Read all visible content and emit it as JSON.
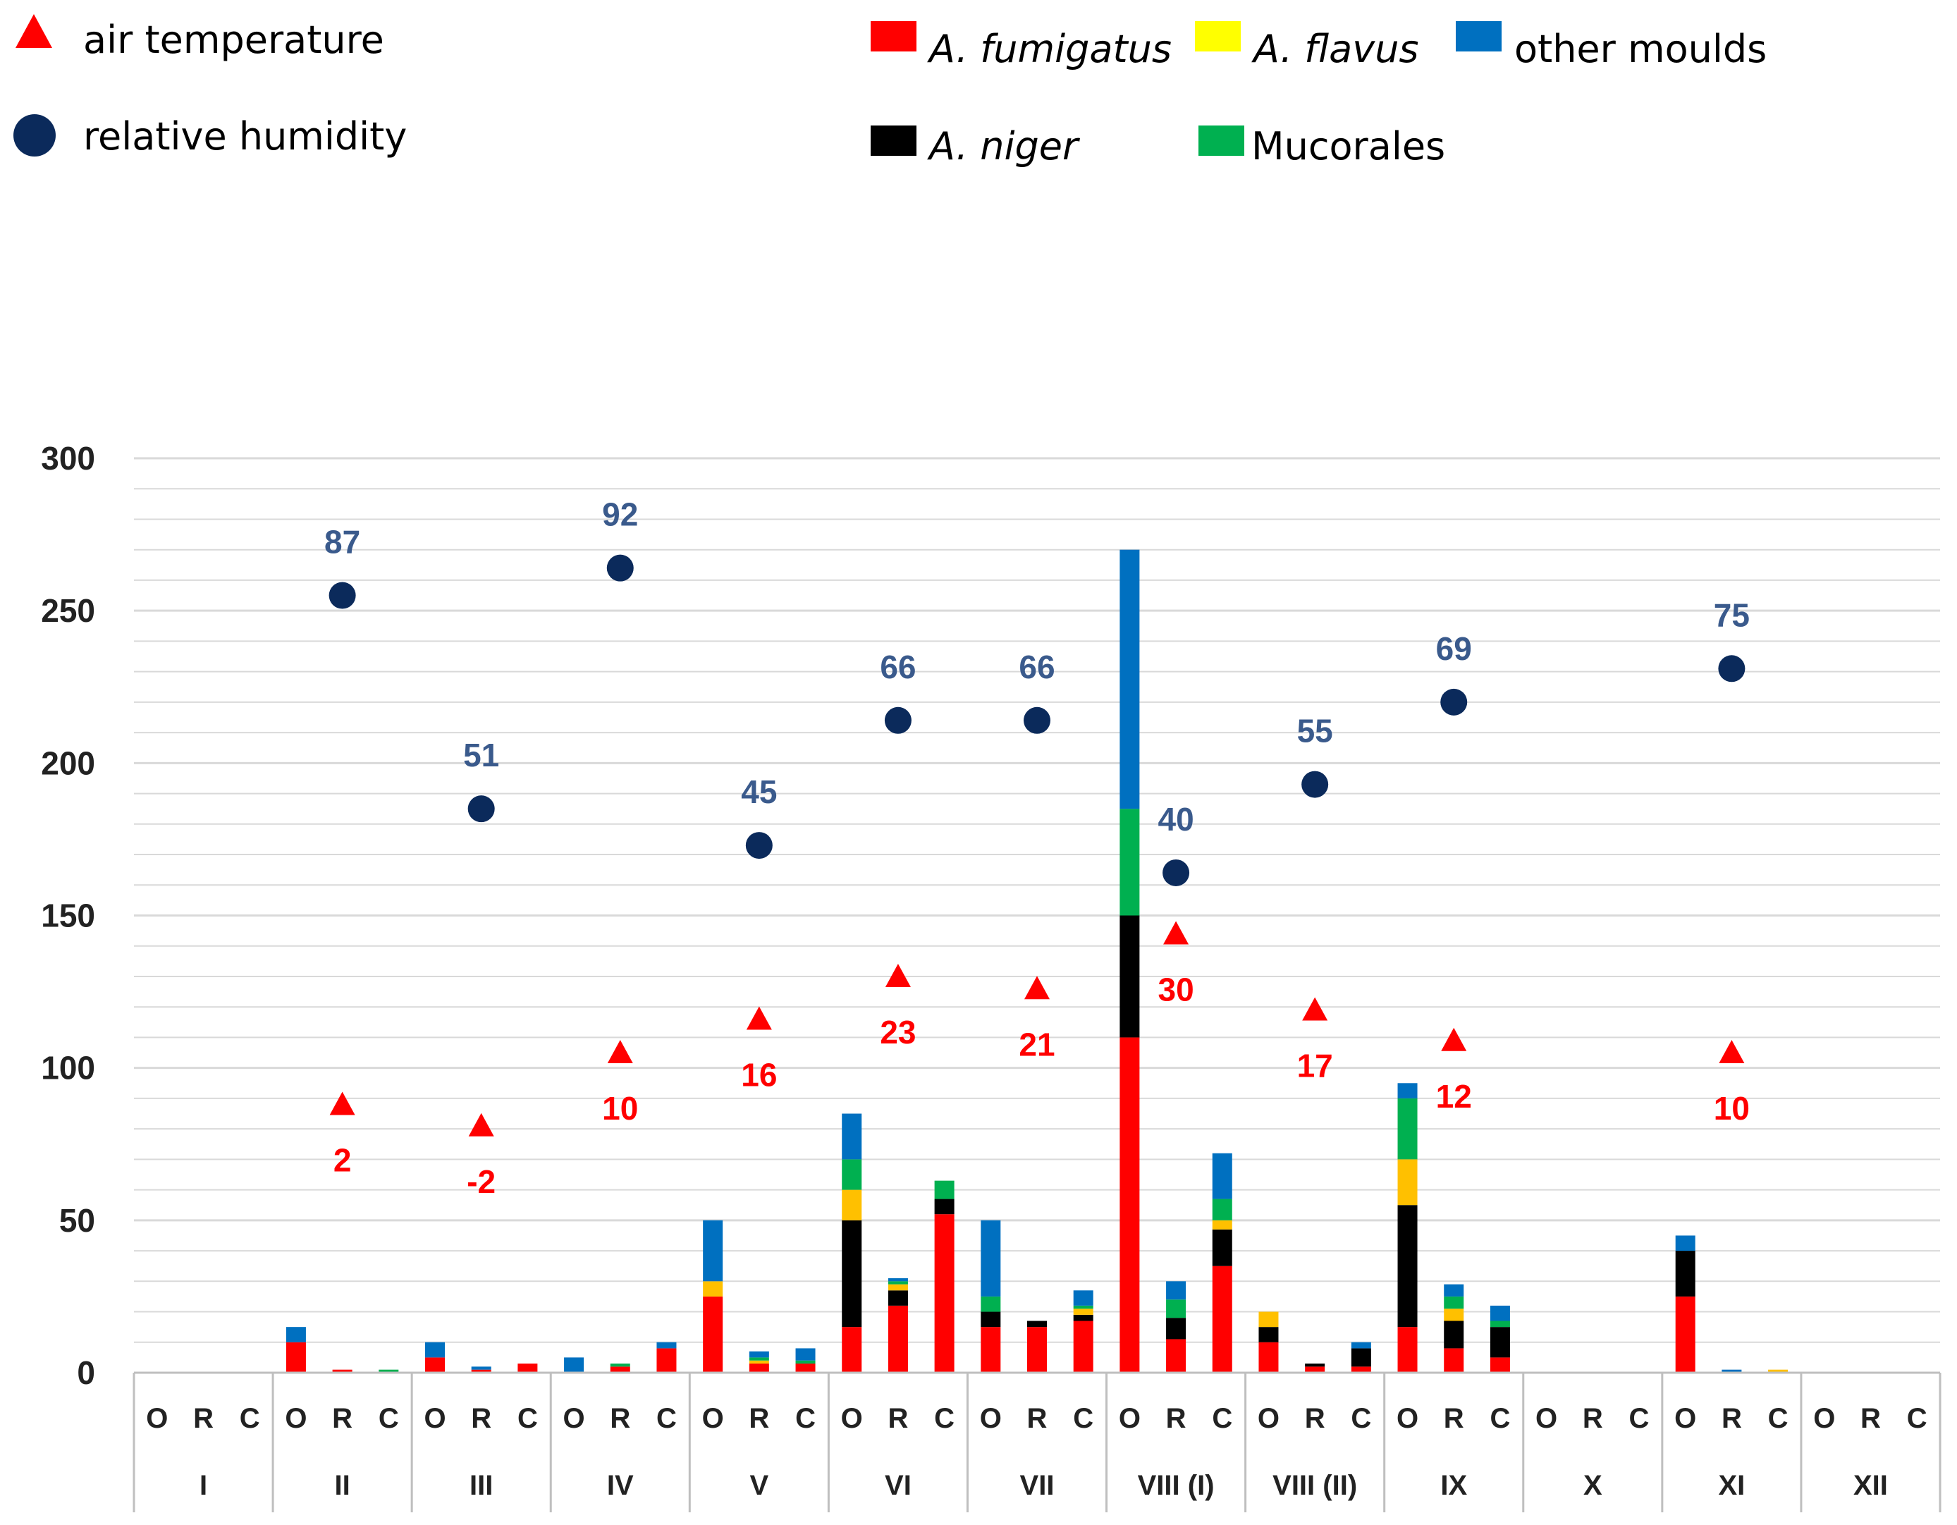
{
  "colors": {
    "fumigatus": "#ff0000",
    "flavus": "#ffc000",
    "flavus_legend": "#ffff00",
    "other": "#0070c0",
    "niger": "#000000",
    "mucorales": "#00b050",
    "temperature": "#ff0000",
    "humidity": "#0b2a5b",
    "humidity_label": "#3a5a8c",
    "grid": "#d9d9d9"
  },
  "legend": {
    "temperature": "air temperature",
    "humidity": "relative humidity",
    "fumigatus": "A. fumigatus",
    "flavus": "A. flavus",
    "other": "other moulds",
    "niger": "A. niger",
    "mucorales": "Mucorales"
  },
  "chart_data": {
    "type": "bar",
    "stacked": true,
    "ylim": [
      0,
      300
    ],
    "yticks": [
      "0",
      "50",
      "100",
      "150",
      "200",
      "250",
      "300"
    ],
    "subcategories": [
      "O",
      "R",
      "C"
    ],
    "stack_order": [
      "fumigatus",
      "niger",
      "flavus",
      "mucorales",
      "other"
    ],
    "groups": [
      {
        "label": "I",
        "bars": [
          {
            "fumigatus": 0,
            "niger": 0,
            "flavus": 0,
            "mucorales": 0,
            "other": 0
          },
          {
            "fumigatus": 0,
            "niger": 0,
            "flavus": 0,
            "mucorales": 0,
            "other": 0
          },
          {
            "fumigatus": 0,
            "niger": 0,
            "flavus": 0,
            "mucorales": 0,
            "other": 0
          }
        ]
      },
      {
        "label": "II",
        "humidity": 87,
        "humidity_pos": 255,
        "temperature": 2,
        "temperature_pos": 88,
        "bars": [
          {
            "fumigatus": 10,
            "niger": 0,
            "flavus": 0,
            "mucorales": 0,
            "other": 5
          },
          {
            "fumigatus": 1,
            "niger": 0,
            "flavus": 0,
            "mucorales": 0,
            "other": 0
          },
          {
            "fumigatus": 0,
            "niger": 0,
            "flavus": 0,
            "mucorales": 1,
            "other": 0
          }
        ]
      },
      {
        "label": "III",
        "humidity": 51,
        "humidity_pos": 185,
        "temperature": -2,
        "temperature_pos": 81,
        "bars": [
          {
            "fumigatus": 5,
            "niger": 0,
            "flavus": 0,
            "mucorales": 0,
            "other": 5
          },
          {
            "fumigatus": 1,
            "niger": 0,
            "flavus": 0,
            "mucorales": 0,
            "other": 1
          },
          {
            "fumigatus": 3,
            "niger": 0,
            "flavus": 0,
            "mucorales": 0,
            "other": 0
          }
        ]
      },
      {
        "label": "IV",
        "humidity": 92,
        "humidity_pos": 264,
        "temperature": 10,
        "temperature_pos": 105,
        "bars": [
          {
            "fumigatus": 0,
            "niger": 0,
            "flavus": 0,
            "mucorales": 0,
            "other": 5
          },
          {
            "fumigatus": 2,
            "niger": 0,
            "flavus": 0,
            "mucorales": 1,
            "other": 0
          },
          {
            "fumigatus": 8,
            "niger": 0,
            "flavus": 0,
            "mucorales": 0,
            "other": 2
          }
        ]
      },
      {
        "label": "V",
        "humidity": 45,
        "humidity_pos": 173,
        "temperature": 16,
        "temperature_pos": 116,
        "bars": [
          {
            "fumigatus": 25,
            "niger": 0,
            "flavus": 5,
            "mucorales": 0,
            "other": 20
          },
          {
            "fumigatus": 3,
            "niger": 0,
            "flavus": 1,
            "mucorales": 1,
            "other": 2
          },
          {
            "fumigatus": 3,
            "niger": 0,
            "flavus": 0,
            "mucorales": 1,
            "other": 4
          }
        ]
      },
      {
        "label": "VI",
        "humidity": 66,
        "humidity_pos": 214,
        "temperature": 23,
        "temperature_pos": 130,
        "bars": [
          {
            "fumigatus": 15,
            "niger": 35,
            "flavus": 10,
            "mucorales": 10,
            "other": 15
          },
          {
            "fumigatus": 22,
            "niger": 5,
            "flavus": 2,
            "mucorales": 1,
            "other": 1
          },
          {
            "fumigatus": 52,
            "niger": 5,
            "flavus": 0,
            "mucorales": 6,
            "other": 0
          }
        ]
      },
      {
        "label": "VII",
        "humidity": 66,
        "humidity_pos": 214,
        "temperature": 21,
        "temperature_pos": 126,
        "bars": [
          {
            "fumigatus": 15,
            "niger": 5,
            "flavus": 0,
            "mucorales": 5,
            "other": 25
          },
          {
            "fumigatus": 15,
            "niger": 2,
            "flavus": 0,
            "mucorales": 0,
            "other": 0
          },
          {
            "fumigatus": 17,
            "niger": 2,
            "flavus": 2,
            "mucorales": 1,
            "other": 5
          }
        ]
      },
      {
        "label": "VIII (I)",
        "humidity": 40,
        "humidity_pos": 164,
        "temperature": 30,
        "temperature_pos": 144,
        "bars": [
          {
            "fumigatus": 110,
            "niger": 40,
            "flavus": 0,
            "mucorales": 35,
            "other": 85
          },
          {
            "fumigatus": 11,
            "niger": 7,
            "flavus": 0,
            "mucorales": 6,
            "other": 6
          },
          {
            "fumigatus": 35,
            "niger": 12,
            "flavus": 3,
            "mucorales": 7,
            "other": 15
          }
        ]
      },
      {
        "label": "VIII (II)",
        "humidity": 55,
        "humidity_pos": 193,
        "temperature": 17,
        "temperature_pos": 119,
        "bars": [
          {
            "fumigatus": 10,
            "niger": 5,
            "flavus": 5,
            "mucorales": 0,
            "other": 0
          },
          {
            "fumigatus": 2,
            "niger": 1,
            "flavus": 0,
            "mucorales": 0,
            "other": 0
          },
          {
            "fumigatus": 2,
            "niger": 6,
            "flavus": 0,
            "mucorales": 0,
            "other": 2
          }
        ]
      },
      {
        "label": "IX",
        "humidity": 69,
        "humidity_pos": 220,
        "temperature": 12,
        "temperature_pos": 109,
        "bars": [
          {
            "fumigatus": 15,
            "niger": 40,
            "flavus": 15,
            "mucorales": 20,
            "other": 5
          },
          {
            "fumigatus": 8,
            "niger": 9,
            "flavus": 4,
            "mucorales": 4,
            "other": 4
          },
          {
            "fumigatus": 5,
            "niger": 10,
            "flavus": 0,
            "mucorales": 2,
            "other": 5
          }
        ]
      },
      {
        "label": "X",
        "bars": [
          {
            "fumigatus": 0,
            "niger": 0,
            "flavus": 0,
            "mucorales": 0,
            "other": 0
          },
          {
            "fumigatus": 0,
            "niger": 0,
            "flavus": 0,
            "mucorales": 0,
            "other": 0
          },
          {
            "fumigatus": 0,
            "niger": 0,
            "flavus": 0,
            "mucorales": 0,
            "other": 0
          }
        ]
      },
      {
        "label": "XI",
        "humidity": 75,
        "humidity_pos": 231,
        "temperature": 10,
        "temperature_pos": 105,
        "bars": [
          {
            "fumigatus": 25,
            "niger": 15,
            "flavus": 0,
            "mucorales": 0,
            "other": 5
          },
          {
            "fumigatus": 0,
            "niger": 0,
            "flavus": 0,
            "mucorales": 0,
            "other": 1
          },
          {
            "fumigatus": 0,
            "niger": 0,
            "flavus": 1,
            "mucorales": 0,
            "other": 0
          }
        ]
      },
      {
        "label": "XII",
        "bars": [
          {
            "fumigatus": 0,
            "niger": 0,
            "flavus": 0,
            "mucorales": 0,
            "other": 0
          },
          {
            "fumigatus": 0,
            "niger": 0,
            "flavus": 0,
            "mucorales": 0,
            "other": 0
          },
          {
            "fumigatus": 0,
            "niger": 0,
            "flavus": 0,
            "mucorales": 0,
            "other": 0
          }
        ]
      }
    ]
  }
}
